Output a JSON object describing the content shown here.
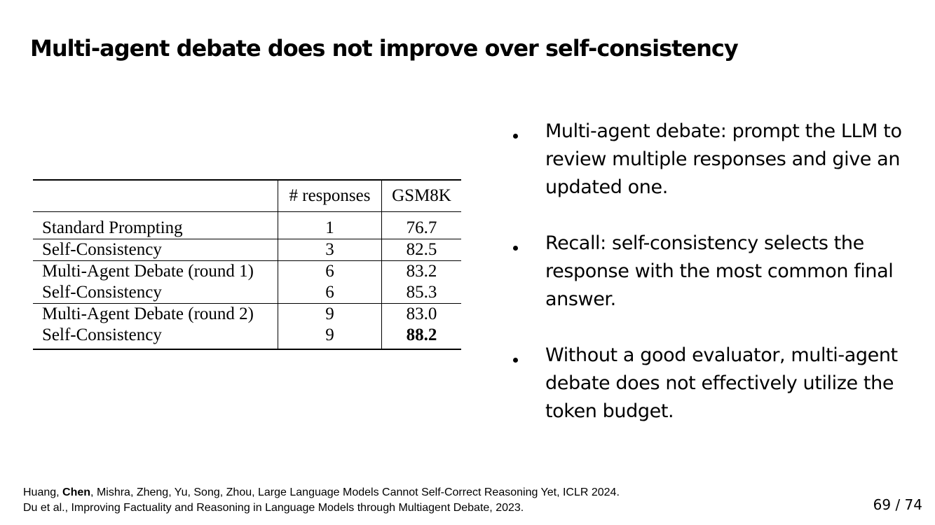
{
  "slide": {
    "title": "Multi-agent debate does not improve over self-consistency"
  },
  "table": {
    "headers": [
      "",
      "# responses",
      "GSM8K"
    ],
    "rows": [
      {
        "method": "Standard Prompting",
        "responses": "1",
        "gsm8k": "76.7"
      },
      {
        "method": "Self-Consistency",
        "responses": "3",
        "gsm8k": "82.5"
      },
      {
        "method": "Multi-Agent Debate (round 1)",
        "responses": "6",
        "gsm8k": "83.2"
      },
      {
        "method": "Self-Consistency",
        "responses": "6",
        "gsm8k": "85.3"
      },
      {
        "method": "Multi-Agent Debate (round 2)",
        "responses": "9",
        "gsm8k": "83.0"
      },
      {
        "method": "Self-Consistency",
        "responses": "9",
        "gsm8k": "88.2"
      }
    ]
  },
  "bullets": [
    "Multi-agent debate: prompt the LLM to review multiple responses and give an updated one.",
    "Recall: self-consistency selects the response with the most common final answer.",
    "Without a good evaluator, multi-agent debate does not effectively utilize the token budget."
  ],
  "references": {
    "ref1": {
      "prefix": "Huang, ",
      "bold_author": "Chen",
      "suffix": ", Mishra, Zheng, Yu, Song, Zhou, Large Language Models Cannot Self-Correct Reasoning Yet, ICLR 2024."
    },
    "ref2": "Du et al., Improving Factuality and Reasoning in Language Models through Multiagent Debate, 2023."
  },
  "page": {
    "label": "69 / 74"
  }
}
